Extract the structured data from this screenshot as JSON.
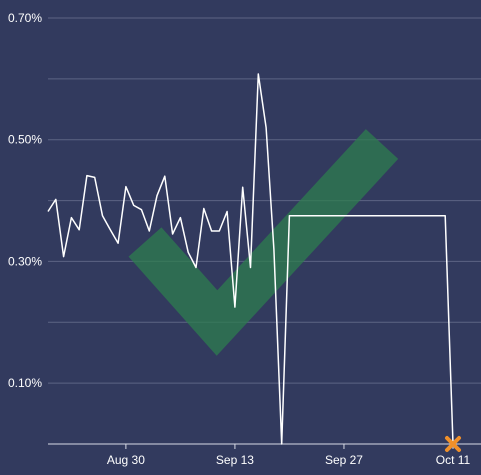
{
  "chart_data": {
    "type": "line",
    "title": "",
    "xlabel": "",
    "ylabel": "",
    "y_unit": "%",
    "ylim": [
      0,
      0.7
    ],
    "xlim": [
      "2023-08-20",
      "2023-10-11"
    ],
    "grid": true,
    "yticks": [
      {
        "value": 0.1,
        "label": "0.10%"
      },
      {
        "value": 0.3,
        "label": "0.30%"
      },
      {
        "value": 0.5,
        "label": "0.50%"
      },
      {
        "value": 0.7,
        "label": "0.70%"
      }
    ],
    "minor_gridlines": [
      0.2,
      0.4,
      0.6
    ],
    "xticks": [
      {
        "date": "2023-08-30",
        "label": "Aug 30"
      },
      {
        "date": "2023-09-13",
        "label": "Sep 13"
      },
      {
        "date": "2023-09-27",
        "label": "Sep 27"
      },
      {
        "date": "2023-10-11",
        "label": "Oct 11"
      }
    ],
    "series": [
      {
        "color": "#ffffff",
        "points": [
          [
            "2023-08-20",
            0.382
          ],
          [
            "2023-08-21",
            0.402
          ],
          [
            "2023-08-22",
            0.308
          ],
          [
            "2023-08-23",
            0.372
          ],
          [
            "2023-08-24",
            0.352
          ],
          [
            "2023-08-25",
            0.441
          ],
          [
            "2023-08-26",
            0.438
          ],
          [
            "2023-08-27",
            0.375
          ],
          [
            "2023-08-28",
            0.352
          ],
          [
            "2023-08-29",
            0.33
          ],
          [
            "2023-08-30",
            0.423
          ],
          [
            "2023-08-31",
            0.392
          ],
          [
            "2023-09-01",
            0.385
          ],
          [
            "2023-09-02",
            0.35
          ],
          [
            "2023-09-03",
            0.408
          ],
          [
            "2023-09-04",
            0.44
          ],
          [
            "2023-09-05",
            0.345
          ],
          [
            "2023-09-06",
            0.372
          ],
          [
            "2023-09-07",
            0.315
          ],
          [
            "2023-09-08",
            0.29
          ],
          [
            "2023-09-09",
            0.387
          ],
          [
            "2023-09-10",
            0.35
          ],
          [
            "2023-09-11",
            0.35
          ],
          [
            "2023-09-12",
            0.382
          ],
          [
            "2023-09-13",
            0.225
          ],
          [
            "2023-09-14",
            0.422
          ],
          [
            "2023-09-15",
            0.29
          ],
          [
            "2023-09-16",
            0.608
          ],
          [
            "2023-09-17",
            0.52
          ],
          [
            "2023-09-18",
            0.32
          ],
          [
            "2023-09-19",
            0.0
          ],
          [
            "2023-09-20",
            0.375
          ],
          [
            "2023-10-10",
            0.375
          ],
          [
            "2023-10-11",
            0.0
          ]
        ]
      }
    ],
    "annotations": [
      {
        "type": "check-mark",
        "color": "#2e7d4f"
      },
      {
        "type": "x-marker",
        "date": "2023-10-11",
        "value": 0.0,
        "color": "#f0902a"
      }
    ]
  }
}
